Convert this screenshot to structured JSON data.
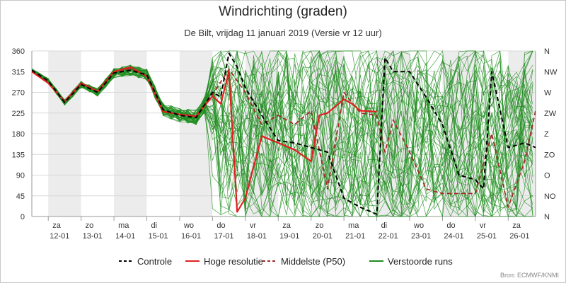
{
  "title": "Windrichting (graden)",
  "subtitle": "De Bilt, vrijdag 11 januari 2019 (Versie vr 12 uur)",
  "source": "Bron: ECMWF/KNMI",
  "chart_data": {
    "type": "line",
    "x_unit": "date",
    "xlim": [
      "2019-01-11T12:00",
      "2019-01-26T20:00"
    ],
    "ylim": [
      0,
      360
    ],
    "yticks": [
      0,
      45,
      90,
      135,
      180,
      225,
      270,
      315,
      360
    ],
    "right_axis_labels": [
      "N",
      "NO",
      "O",
      "ZO",
      "Z",
      "ZW",
      "W",
      "NW",
      "N"
    ],
    "grid": "horizontal",
    "weekend_shading": true,
    "x_tick_days": [
      {
        "date": "2019-01-12",
        "day": "za",
        "label": "12-01"
      },
      {
        "date": "2019-01-13",
        "day": "zo",
        "label": "13-01"
      },
      {
        "date": "2019-01-14",
        "day": "ma",
        "label": "14-01"
      },
      {
        "date": "2019-01-15",
        "day": "di",
        "label": "15-01"
      },
      {
        "date": "2019-01-16",
        "day": "wo",
        "label": "16-01"
      },
      {
        "date": "2019-01-17",
        "day": "do",
        "label": "17-01"
      },
      {
        "date": "2019-01-18",
        "day": "vr",
        "label": "18-01"
      },
      {
        "date": "2019-01-19",
        "day": "za",
        "label": "19-01"
      },
      {
        "date": "2019-01-20",
        "day": "zo",
        "label": "20-01"
      },
      {
        "date": "2019-01-21",
        "day": "ma",
        "label": "21-01"
      },
      {
        "date": "2019-01-22",
        "day": "di",
        "label": "22-01"
      },
      {
        "date": "2019-01-23",
        "day": "wo",
        "label": "23-01"
      },
      {
        "date": "2019-01-24",
        "day": "do",
        "label": "24-01"
      },
      {
        "date": "2019-01-25",
        "day": "vr",
        "label": "25-01"
      },
      {
        "date": "2019-01-26",
        "day": "za",
        "label": "26-01"
      }
    ],
    "legend_position": "bottom",
    "series": [
      {
        "name": "Controle",
        "color": "#000000",
        "dash": "dashed",
        "points": [
          [
            "2019-01-11T12:00",
            318
          ],
          [
            "2019-01-12T00:00",
            295
          ],
          [
            "2019-01-12T12:00",
            248
          ],
          [
            "2019-01-13T00:00",
            287
          ],
          [
            "2019-01-13T12:00",
            270
          ],
          [
            "2019-01-14T00:00",
            312
          ],
          [
            "2019-01-14T12:00",
            318
          ],
          [
            "2019-01-15T00:00",
            308
          ],
          [
            "2019-01-15T12:00",
            232
          ],
          [
            "2019-01-16T00:00",
            220
          ],
          [
            "2019-01-16T12:00",
            215
          ],
          [
            "2019-01-17T00:00",
            270
          ],
          [
            "2019-01-17T06:00",
            260
          ],
          [
            "2019-01-17T12:00",
            355
          ],
          [
            "2019-01-17T18:00",
            325
          ],
          [
            "2019-01-18T00:00",
            280
          ],
          [
            "2019-01-18T12:00",
            220
          ],
          [
            "2019-01-19T00:00",
            165
          ],
          [
            "2019-01-19T12:00",
            160
          ],
          [
            "2019-01-20T00:00",
            150
          ],
          [
            "2019-01-20T12:00",
            140
          ],
          [
            "2019-01-21T00:00",
            40
          ],
          [
            "2019-01-21T12:00",
            20
          ],
          [
            "2019-01-22T00:00",
            5
          ],
          [
            "2019-01-22T06:00",
            345
          ],
          [
            "2019-01-22T12:00",
            315
          ],
          [
            "2019-01-23T00:00",
            315
          ],
          [
            "2019-01-23T12:00",
            260
          ],
          [
            "2019-01-24T00:00",
            200
          ],
          [
            "2019-01-24T12:00",
            90
          ],
          [
            "2019-01-25T00:00",
            80
          ],
          [
            "2019-01-25T06:00",
            60
          ],
          [
            "2019-01-25T12:00",
            315
          ],
          [
            "2019-01-26T00:00",
            150
          ],
          [
            "2019-01-26T12:00",
            160
          ],
          [
            "2019-01-26T20:00",
            150
          ]
        ]
      },
      {
        "name": "Hoge resolutie",
        "color": "#e02020",
        "dash": "solid",
        "points": [
          [
            "2019-01-11T12:00",
            315
          ],
          [
            "2019-01-12T00:00",
            290
          ],
          [
            "2019-01-12T12:00",
            250
          ],
          [
            "2019-01-13T00:00",
            290
          ],
          [
            "2019-01-13T12:00",
            272
          ],
          [
            "2019-01-14T00:00",
            315
          ],
          [
            "2019-01-14T12:00",
            325
          ],
          [
            "2019-01-15T00:00",
            305
          ],
          [
            "2019-01-15T12:00",
            228
          ],
          [
            "2019-01-16T00:00",
            222
          ],
          [
            "2019-01-16T12:00",
            218
          ],
          [
            "2019-01-17T00:00",
            262
          ],
          [
            "2019-01-17T06:00",
            245
          ],
          [
            "2019-01-17T12:00",
            315
          ],
          [
            "2019-01-17T18:00",
            10
          ],
          [
            "2019-01-18T00:00",
            40
          ],
          [
            "2019-01-18T12:00",
            175
          ],
          [
            "2019-01-19T00:00",
            160
          ],
          [
            "2019-01-19T12:00",
            145
          ],
          [
            "2019-01-20T00:00",
            120
          ],
          [
            "2019-01-20T06:00",
            220
          ],
          [
            "2019-01-20T12:00",
            225
          ],
          [
            "2019-01-21T00:00",
            255
          ],
          [
            "2019-01-21T06:00",
            245
          ],
          [
            "2019-01-21T12:00",
            230
          ],
          [
            "2019-01-22T00:00",
            228
          ]
        ]
      },
      {
        "name": "Middelste (P50)",
        "color": "#a52a2a",
        "dash": "dashed",
        "points": [
          [
            "2019-01-11T12:00",
            316
          ],
          [
            "2019-01-12T00:00",
            292
          ],
          [
            "2019-01-12T12:00",
            248
          ],
          [
            "2019-01-13T00:00",
            289
          ],
          [
            "2019-01-13T12:00",
            271
          ],
          [
            "2019-01-14T00:00",
            313
          ],
          [
            "2019-01-14T12:00",
            322
          ],
          [
            "2019-01-15T00:00",
            305
          ],
          [
            "2019-01-15T12:00",
            230
          ],
          [
            "2019-01-16T00:00",
            221
          ],
          [
            "2019-01-16T12:00",
            217
          ],
          [
            "2019-01-17T00:00",
            265
          ],
          [
            "2019-01-17T12:00",
            320
          ],
          [
            "2019-01-18T00:00",
            270
          ],
          [
            "2019-01-18T12:00",
            200
          ],
          [
            "2019-01-19T00:00",
            220
          ],
          [
            "2019-01-19T12:00",
            200
          ],
          [
            "2019-01-20T00:00",
            230
          ],
          [
            "2019-01-20T12:00",
            60
          ],
          [
            "2019-01-21T00:00",
            270
          ],
          [
            "2019-01-21T12:00",
            225
          ],
          [
            "2019-01-22T00:00",
            220
          ],
          [
            "2019-01-22T06:00",
            140
          ],
          [
            "2019-01-22T12:00",
            210
          ],
          [
            "2019-01-23T00:00",
            140
          ],
          [
            "2019-01-23T12:00",
            60
          ],
          [
            "2019-01-24T00:00",
            50
          ],
          [
            "2019-01-24T12:00",
            50
          ],
          [
            "2019-01-25T00:00",
            50
          ],
          [
            "2019-01-25T12:00",
            180
          ],
          [
            "2019-01-26T00:00",
            20
          ],
          [
            "2019-01-26T12:00",
            120
          ],
          [
            "2019-01-26T20:00",
            230
          ]
        ]
      },
      {
        "name": "Verstoorde runs",
        "color": "#1e8c1e",
        "dash": "solid",
        "members": 50
      }
    ]
  }
}
